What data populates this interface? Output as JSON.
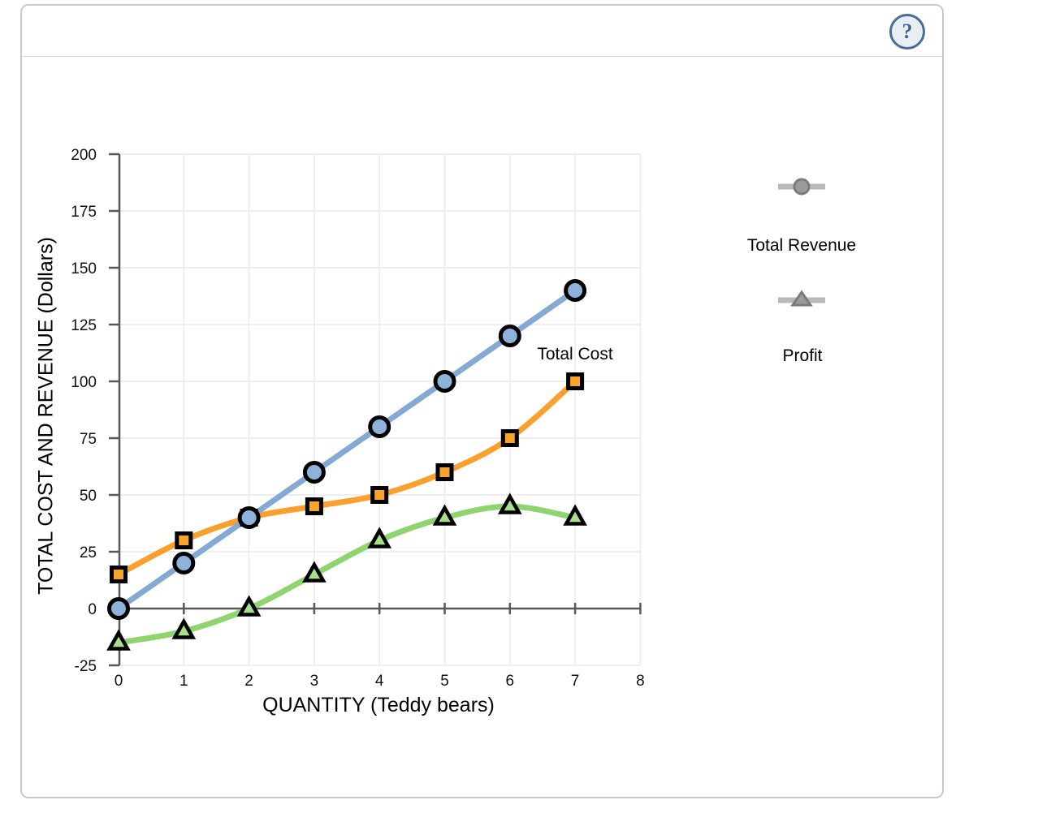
{
  "header": {
    "help_label": "?"
  },
  "chart_data": {
    "type": "line",
    "x": [
      0,
      1,
      2,
      3,
      4,
      5,
      6,
      7
    ],
    "series": [
      {
        "name": "Total Cost",
        "marker": "square",
        "line_color": "#f9a02e",
        "marker_fill": "#faa430",
        "values": [
          15,
          30,
          40,
          45,
          50,
          60,
          75,
          100
        ]
      },
      {
        "name": "Total Revenue",
        "marker": "circle",
        "line_color": "#84a9d2",
        "marker_fill": "#8db3da",
        "values": [
          0,
          20,
          40,
          60,
          80,
          100,
          120,
          140
        ]
      },
      {
        "name": "Profit",
        "marker": "triangle",
        "line_color": "#8fd46f",
        "marker_fill": "#a9de8a",
        "values": [
          -15,
          -10,
          0,
          15,
          30,
          40,
          45,
          40
        ]
      }
    ],
    "xlabel": "QUANTITY (Teddy bears)",
    "ylabel": "TOTAL COST AND REVENUE (Dollars)",
    "xlim": [
      0,
      8
    ],
    "ylim": [
      -25,
      200
    ],
    "x_ticks": [
      0,
      1,
      2,
      3,
      4,
      5,
      6,
      7,
      8
    ],
    "y_ticks": [
      200,
      175,
      150,
      125,
      100,
      75,
      50,
      25,
      0,
      -25
    ],
    "grid": true,
    "legend_position": "right",
    "annotation": {
      "text": "Total Cost"
    },
    "legend": [
      {
        "label": "Total Revenue",
        "marker": "circle"
      },
      {
        "label": "Profit",
        "marker": "triangle"
      }
    ]
  },
  "colors": {
    "axis": "#595959",
    "grid": "#eeeeee",
    "tick_text": "#111111",
    "marker_stroke": "#000000",
    "legend_line": "#b9b9b9",
    "legend_fill": "#9b9b9b",
    "legend_stroke": "#7b7b7b"
  }
}
